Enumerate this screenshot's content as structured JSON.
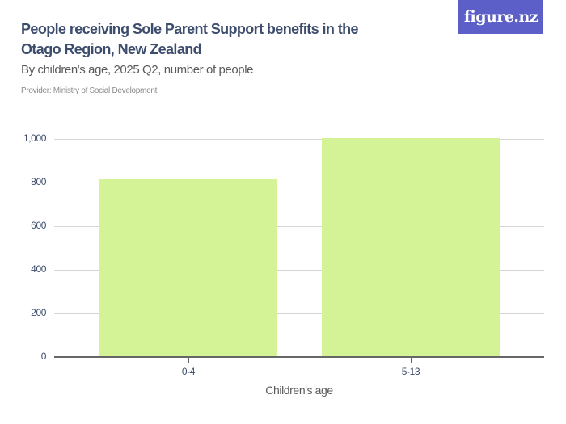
{
  "header": {
    "title": "People receiving Sole Parent Support benefits in the Otago Region, New Zealand",
    "subtitle": "By children's age, 2025 Q2, number of people",
    "provider": "Provider: Ministry of Social Development",
    "logo": "figure.nz"
  },
  "colors": {
    "bar": "#d4f296",
    "title": "#3d4d6e",
    "logo_bg": "#5b5fc7"
  },
  "chart_data": {
    "type": "bar",
    "title": "People receiving Sole Parent Support benefits in the Otago Region, New Zealand",
    "subtitle": "By children's age, 2025 Q2, number of people",
    "categories": [
      "0-4",
      "5-13"
    ],
    "values": [
      816,
      1005
    ],
    "xlabel": "Children's age",
    "ylabel": "",
    "ylim": [
      0,
      1000
    ],
    "yticks": [
      "0",
      "200",
      "400",
      "600",
      "800",
      "1,000"
    ],
    "grid": true,
    "legend": null
  }
}
